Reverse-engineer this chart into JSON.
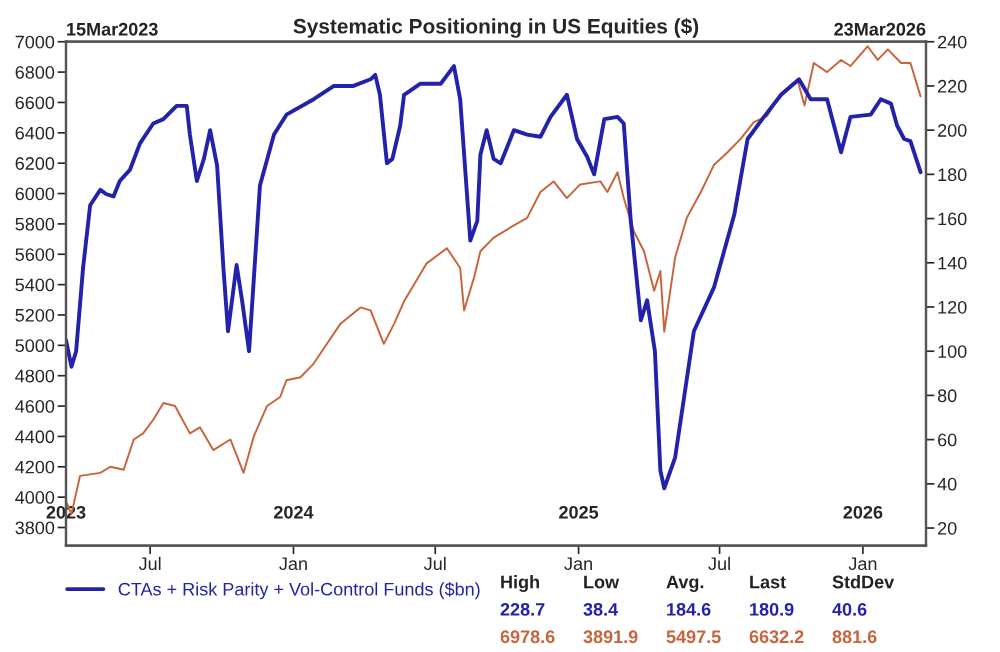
{
  "chart_data": {
    "type": "line",
    "title": "Systematic Positioning in US Equities ($)",
    "xlim": [
      "2023-03-15",
      "2026-03-23"
    ],
    "xticks": [
      {
        "value": "2023-07-01",
        "label": "Jul"
      },
      {
        "value": "2024-01-01",
        "label": "Jan"
      },
      {
        "value": "2024-07-01",
        "label": "Jul"
      },
      {
        "value": "2025-01-01",
        "label": "Jan"
      },
      {
        "value": "2025-07-01",
        "label": "Jul"
      },
      {
        "value": "2026-01-01",
        "label": "Jan"
      }
    ],
    "ylim": [
      3680,
      7000
    ],
    "yticks": [
      3800,
      4000,
      4200,
      4400,
      4600,
      4800,
      5000,
      5200,
      5400,
      5600,
      5800,
      6000,
      6200,
      6400,
      6600,
      6800,
      7000
    ],
    "y2lim": [
      12,
      240
    ],
    "y2ticks": [
      20,
      40,
      60,
      80,
      100,
      120,
      140,
      160,
      180,
      200,
      220,
      240
    ],
    "grid": false,
    "legend": "bottom left",
    "series": [
      {
        "color": "#c8643c",
        "x": [
          "2023-03-16",
          "2023-03-22",
          "2023-04-02",
          "2023-04-28",
          "2023-05-11",
          "2023-05-28",
          "2023-06-10",
          "2023-06-22",
          "2023-07-05",
          "2023-07-18",
          "2023-08-02",
          "2023-08-21",
          "2023-09-03",
          "2023-09-20",
          "2023-10-12",
          "2023-10-29",
          "2023-11-11",
          "2023-11-28",
          "2023-12-15",
          "2023-12-23",
          "2024-01-10",
          "2024-01-27",
          "2024-02-13",
          "2024-03-01",
          "2024-03-27",
          "2024-04-09",
          "2024-04-26",
          "2024-05-09",
          "2024-05-22",
          "2024-06-20",
          "2024-07-16",
          "2024-08-02",
          "2024-08-07",
          "2024-08-20",
          "2024-08-28",
          "2024-09-14",
          "2024-10-10",
          "2024-10-27",
          "2024-11-13",
          "2024-11-30",
          "2024-12-17",
          "2025-01-03",
          "2025-01-29",
          "2025-02-07",
          "2025-02-20",
          "2025-02-28",
          "2025-03-13",
          "2025-03-26",
          "2025-04-08",
          "2025-04-16",
          "2025-04-21",
          "2025-05-05",
          "2025-05-20",
          "2025-06-07",
          "2025-06-24",
          "2025-07-11",
          "2025-07-28",
          "2025-08-14",
          "2025-08-31",
          "2025-09-18",
          "2025-10-09",
          "2025-10-18",
          "2025-10-30",
          "2025-11-16",
          "2025-12-04",
          "2025-12-16",
          "2026-01-07",
          "2026-01-20",
          "2026-02-02",
          "2026-02-19",
          "2026-03-03",
          "2026-03-16"
        ],
        "values": [
          3960,
          3890,
          4140,
          4160,
          4200,
          4180,
          4380,
          4420,
          4510,
          4620,
          4600,
          4420,
          4460,
          4310,
          4380,
          4160,
          4400,
          4600,
          4660,
          4770,
          4790,
          4880,
          5010,
          5140,
          5250,
          5230,
          5010,
          5140,
          5290,
          5540,
          5640,
          5510,
          5230,
          5450,
          5620,
          5710,
          5790,
          5840,
          6010,
          6080,
          5970,
          6060,
          6080,
          6010,
          6140,
          5970,
          5750,
          5620,
          5360,
          5490,
          5090,
          5580,
          5840,
          6010,
          6190,
          6270,
          6360,
          6470,
          6510,
          6660,
          6750,
          6580,
          6860,
          6800,
          6880,
          6840,
          6970,
          6880,
          6950,
          6860,
          6860,
          6640
        ]
      },
      {
        "name": "CTAs + Risk Parity + Vol-Control Funds ($bn)",
        "color": "#2222aa",
        "axis": "y2",
        "x": [
          "2023-03-15",
          "2023-03-22",
          "2023-03-28",
          "2023-04-06",
          "2023-04-15",
          "2023-04-28",
          "2023-05-06",
          "2023-05-15",
          "2023-05-23",
          "2023-06-05",
          "2023-06-18",
          "2023-07-05",
          "2023-07-18",
          "2023-08-04",
          "2023-08-17",
          "2023-08-21",
          "2023-08-30",
          "2023-09-08",
          "2023-09-16",
          "2023-09-25",
          "2023-10-03",
          "2023-10-09",
          "2023-10-20",
          "2023-10-27",
          "2023-11-05",
          "2023-11-19",
          "2023-12-07",
          "2023-12-23",
          "2024-01-27",
          "2024-02-22",
          "2024-03-18",
          "2024-04-09",
          "2024-04-15",
          "2024-04-21",
          "2024-04-30",
          "2024-05-07",
          "2024-05-17",
          "2024-05-22",
          "2024-06-12",
          "2024-07-08",
          "2024-07-25",
          "2024-08-02",
          "2024-08-15",
          "2024-08-24",
          "2024-08-28",
          "2024-09-05",
          "2024-09-14",
          "2024-09-23",
          "2024-10-10",
          "2024-10-27",
          "2024-11-13",
          "2024-11-26",
          "2024-12-17",
          "2024-12-30",
          "2025-01-12",
          "2025-01-21",
          "2025-02-03",
          "2025-02-20",
          "2025-02-28",
          "2025-03-09",
          "2025-03-22",
          "2025-03-30",
          "2025-04-09",
          "2025-04-16",
          "2025-04-21",
          "2025-05-05",
          "2025-05-16",
          "2025-05-29",
          "2025-06-24",
          "2025-07-20",
          "2025-08-06",
          "2025-08-27",
          "2025-09-18",
          "2025-10-11",
          "2025-10-26",
          "2025-11-16",
          "2025-11-25",
          "2025-12-04",
          "2025-12-16",
          "2026-01-11",
          "2026-01-24",
          "2026-02-06",
          "2026-02-14",
          "2026-02-23",
          "2026-03-03",
          "2026-03-16"
        ],
        "values": [
          105,
          93,
          100,
          138,
          166,
          173,
          171,
          170,
          177,
          182,
          194,
          203,
          205,
          211,
          211,
          198,
          177,
          187,
          200,
          184,
          138,
          109,
          139,
          123,
          100,
          175,
          198,
          207,
          214,
          220,
          220,
          223,
          225,
          216,
          185,
          187,
          202,
          216,
          221,
          221,
          229,
          214,
          150,
          159,
          189,
          200,
          187,
          185,
          200,
          198,
          197,
          206,
          216,
          196,
          188,
          180,
          205,
          206,
          203,
          159,
          114,
          123,
          100,
          46,
          38,
          52,
          78,
          109,
          129,
          162,
          196,
          206,
          216,
          223,
          214,
          214,
          202,
          190,
          206,
          207,
          214,
          212,
          202,
          196,
          195,
          181
        ]
      }
    ],
    "annotations": [
      "High",
      "Low",
      "Avg.",
      "Last",
      "StdDev",
      "228.7",
      "38.4",
      "184.6",
      "180.9",
      "40.6",
      "6978.6",
      "3891.9",
      "5497.5",
      "6632.2",
      "881.6",
      "15Mar2023",
      "23Mar2026"
    ],
    "x2lim": [
      "2023-03-15",
      "2026-03-23"
    ],
    "x2ticks": [
      {
        "value": "2023-03-15",
        "label": "2023"
      },
      {
        "value": "2024-01-01",
        "label": "2024"
      },
      {
        "value": "2025-01-01",
        "label": "2025"
      },
      {
        "value": "2026-01-01",
        "label": "2026"
      }
    ]
  }
}
